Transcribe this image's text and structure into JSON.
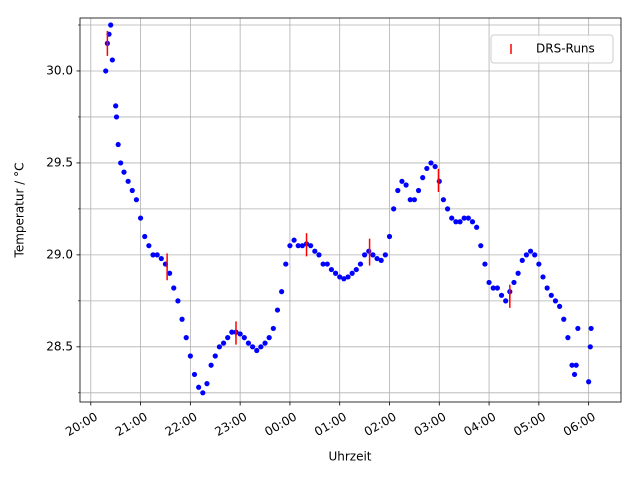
{
  "chart_data": {
    "type": "scatter",
    "x_label": "Uhrzeit",
    "y_label": "Temperatur / °C",
    "xlim": [
      "19:47",
      "06:39"
    ],
    "ylim": [
      28.2,
      30.288
    ],
    "xticks": [
      "20:00",
      "21:00",
      "22:00",
      "23:00",
      "00:00",
      "01:00",
      "02:00",
      "03:00",
      "04:00",
      "05:00",
      "06:00"
    ],
    "yticks": [
      {
        "value": 28.5,
        "label": "28.5"
      },
      {
        "value": 29.0,
        "label": "29.0"
      },
      {
        "value": 29.5,
        "label": "29.5"
      },
      {
        "value": 30.0,
        "label": "30.0"
      }
    ],
    "yminorticks": [
      28.25,
      28.75,
      29.25,
      29.75,
      30.25
    ],
    "grid": true,
    "legend": "upper right",
    "series": [
      {
        "color": "#0000ff",
        "marker": "o",
        "x": [
          "20:18",
          "20:20",
          "20:22",
          "20:24",
          "20:26",
          "20:30",
          "20:31",
          "20:33",
          "20:36",
          "20:40",
          "20:45",
          "20:50",
          "20:55",
          "21:00",
          "21:05",
          "21:10",
          "21:15",
          "21:20",
          "21:25",
          "21:30",
          "21:35",
          "21:40",
          "21:45",
          "21:50",
          "21:55",
          "22:00",
          "22:05",
          "22:10",
          "22:15",
          "22:20",
          "22:25",
          "22:30",
          "22:35",
          "22:40",
          "22:45",
          "22:50",
          "22:55",
          "23:00",
          "23:05",
          "23:10",
          "23:15",
          "23:20",
          "23:25",
          "23:30",
          "23:35",
          "23:40",
          "23:45",
          "23:50",
          "23:55",
          "00:00",
          "00:05",
          "00:10",
          "00:15",
          "00:20",
          "00:25",
          "00:30",
          "00:35",
          "00:40",
          "00:45",
          "00:50",
          "00:55",
          "01:00",
          "01:05",
          "01:10",
          "01:15",
          "01:20",
          "01:25",
          "01:30",
          "01:35",
          "01:40",
          "01:45",
          "01:50",
          "01:55",
          "02:00",
          "02:05",
          "02:10",
          "02:15",
          "02:20",
          "02:25",
          "02:30",
          "02:35",
          "02:40",
          "02:45",
          "02:50",
          "02:55",
          "03:00",
          "03:05",
          "03:10",
          "03:15",
          "03:20",
          "03:25",
          "03:30",
          "03:35",
          "03:40",
          "03:45",
          "03:50",
          "03:55",
          "04:00",
          "04:05",
          "04:10",
          "04:15",
          "04:20",
          "04:25",
          "04:30",
          "04:35",
          "04:40",
          "04:45",
          "04:50",
          "04:55",
          "05:00",
          "05:05",
          "05:10",
          "05:15",
          "05:20",
          "05:25",
          "05:30",
          "05:35",
          "05:40",
          "05:43",
          "05:45",
          "05:47",
          "06:00",
          "06:02",
          "06:03"
        ],
        "values": [
          30.0,
          30.15,
          30.2,
          30.25,
          30.06,
          29.81,
          29.75,
          29.6,
          29.5,
          29.45,
          29.4,
          29.35,
          29.3,
          29.2,
          29.1,
          29.05,
          29.0,
          29.0,
          28.98,
          28.95,
          28.9,
          28.82,
          28.75,
          28.65,
          28.55,
          28.45,
          28.35,
          28.28,
          28.25,
          28.3,
          28.4,
          28.45,
          28.5,
          28.52,
          28.55,
          28.58,
          28.58,
          28.57,
          28.55,
          28.52,
          28.5,
          28.48,
          28.5,
          28.52,
          28.55,
          28.6,
          28.7,
          28.8,
          28.95,
          29.05,
          29.08,
          29.05,
          29.05,
          29.06,
          29.05,
          29.02,
          29.0,
          28.95,
          28.95,
          28.92,
          28.9,
          28.88,
          28.87,
          28.88,
          28.9,
          28.92,
          28.95,
          29.0,
          29.02,
          29.0,
          28.98,
          28.97,
          29.0,
          29.1,
          29.25,
          29.35,
          29.4,
          29.38,
          29.3,
          29.3,
          29.35,
          29.42,
          29.47,
          29.5,
          29.48,
          29.4,
          29.3,
          29.25,
          29.2,
          29.18,
          29.18,
          29.2,
          29.2,
          29.18,
          29.15,
          29.05,
          28.95,
          28.85,
          28.82,
          28.82,
          28.78,
          28.75,
          28.8,
          28.85,
          28.9,
          28.97,
          29.0,
          29.02,
          29.0,
          28.95,
          28.88,
          28.82,
          28.78,
          28.75,
          28.72,
          28.65,
          28.55,
          28.4,
          28.35,
          28.4,
          28.6,
          28.31,
          28.5,
          28.6
        ]
      },
      {
        "name": "DRS-Runs",
        "color": "#ff0000",
        "marker": "|",
        "x": [
          "20:20",
          "20:20",
          "21:32",
          "21:32",
          "22:55",
          "22:55",
          "00:20",
          "00:20",
          "01:36",
          "01:36",
          "02:59",
          "02:59",
          "04:25",
          "04:25"
        ],
        "values": [
          30.12,
          30.18,
          28.9,
          28.97,
          28.55,
          28.6,
          29.03,
          29.08,
          28.98,
          29.05,
          29.38,
          29.43,
          28.75,
          28.8
        ]
      }
    ]
  }
}
